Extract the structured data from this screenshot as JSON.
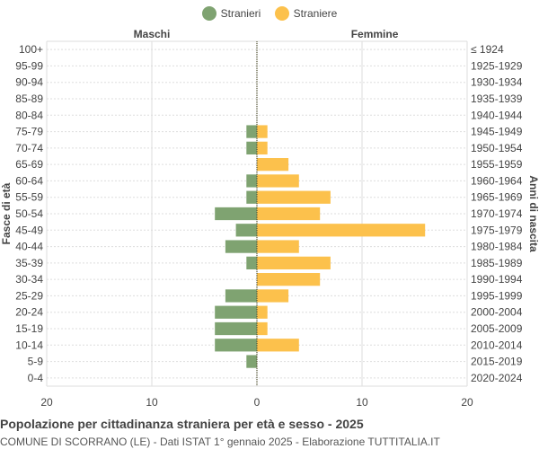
{
  "colors": {
    "male": "#7fa371",
    "female": "#fcc14c",
    "grid": "#dddddd",
    "text": "#444444"
  },
  "legend": {
    "male_label": "Stranieri",
    "female_label": "Straniere"
  },
  "footer": {
    "title": "Popolazione per cittadinanza straniera per età e sesso - 2025",
    "subtitle": "COMUNE DI SCORRANO (LE) - Dati ISTAT 1° gennaio 2025 - Elaborazione TUTTITALIA.IT"
  },
  "chart_data": {
    "type": "bar",
    "orientation": "horizontal-pyramid",
    "left_header": "Maschi",
    "right_header": "Femmine",
    "ylabel_left": "Fasce di età",
    "ylabel_right": "Anni di nascita",
    "xlim": [
      -20,
      20
    ],
    "x_ticks": [
      -20,
      -10,
      0,
      10,
      20
    ],
    "x_tick_labels": [
      "20",
      "10",
      "0",
      "10",
      "20"
    ],
    "categories": [
      "100+",
      "95-99",
      "90-94",
      "85-89",
      "80-84",
      "75-79",
      "70-74",
      "65-69",
      "60-64",
      "55-59",
      "50-54",
      "45-49",
      "40-44",
      "35-39",
      "30-34",
      "25-29",
      "20-24",
      "15-19",
      "10-14",
      "5-9",
      "0-4"
    ],
    "birth_years": [
      "≤ 1924",
      "1925-1929",
      "1930-1934",
      "1935-1939",
      "1940-1944",
      "1945-1949",
      "1950-1954",
      "1955-1959",
      "1960-1964",
      "1965-1969",
      "1970-1974",
      "1975-1979",
      "1980-1984",
      "1985-1989",
      "1990-1994",
      "1995-1999",
      "2000-2004",
      "2005-2009",
      "2010-2014",
      "2015-2019",
      "2020-2024"
    ],
    "series": [
      {
        "name": "Stranieri",
        "values": [
          0,
          0,
          0,
          0,
          0,
          1,
          1,
          0,
          1,
          1,
          4,
          2,
          3,
          1,
          0,
          3,
          4,
          4,
          4,
          1,
          0
        ]
      },
      {
        "name": "Straniere",
        "values": [
          0,
          0,
          0,
          0,
          0,
          1,
          1,
          3,
          4,
          7,
          6,
          16,
          4,
          7,
          6,
          3,
          1,
          1,
          4,
          0,
          0
        ]
      }
    ],
    "grid": true,
    "legend_position": "top-center"
  }
}
